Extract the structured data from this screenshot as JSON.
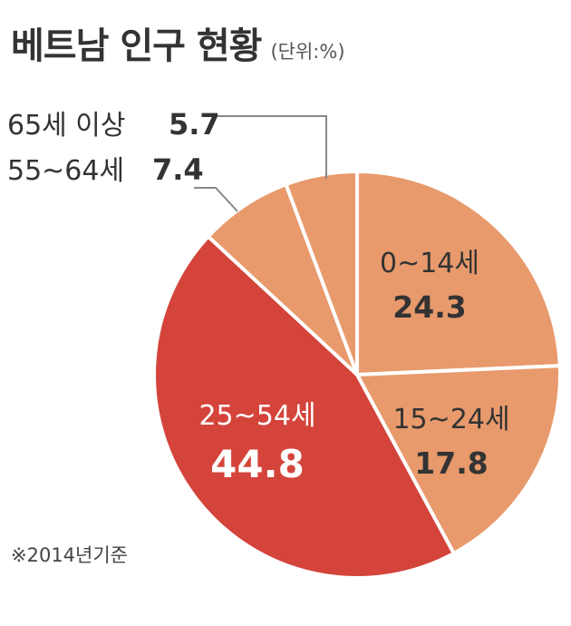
{
  "chart_data": {
    "type": "pie",
    "title": "베트남 인구 현황",
    "unit": "(단위:%)",
    "footnote": "※2014년기준",
    "start_angle_deg": 0,
    "direction": "clockwise",
    "slices": [
      {
        "label": "0~14세",
        "value": 24.3,
        "color": "#e89a6c",
        "value_label": "24.3"
      },
      {
        "label": "15~24세",
        "value": 17.8,
        "color": "#e89a6c",
        "value_label": "17.8"
      },
      {
        "label": "25~54세",
        "value": 44.8,
        "color": "#d4443b",
        "value_label": "44.8"
      },
      {
        "label": "55~64세",
        "value": 7.4,
        "color": "#e89a6c",
        "value_label": "7.4"
      },
      {
        "label": "65세 이상",
        "value": 5.7,
        "color": "#e89a6c",
        "value_label": "5.7"
      }
    ],
    "colors": {
      "label_text_dark": "#333333",
      "label_text_light": "#ffffff",
      "leader_line": "#888888",
      "slice_border": "#ffffff"
    }
  }
}
